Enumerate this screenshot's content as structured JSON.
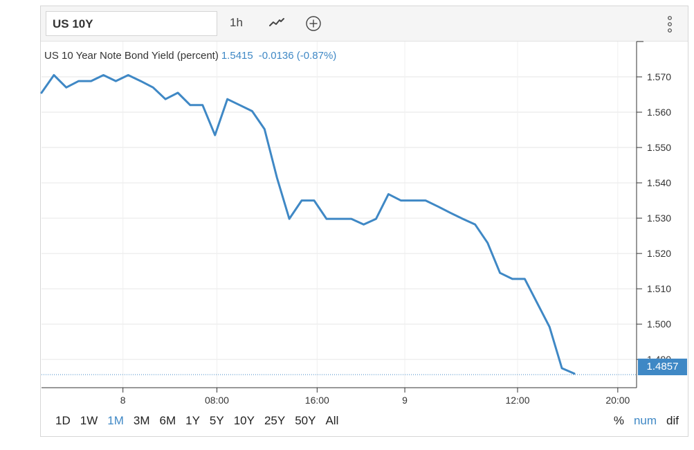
{
  "toolbar": {
    "symbol": "US 10Y",
    "interval": "1h",
    "icons": [
      "line-chart-icon",
      "add-circle-icon",
      "more-vertical-icon"
    ]
  },
  "legend": {
    "name": "US 10 Year Note Bond Yield (percent)",
    "value": "1.5415",
    "change": "-0.0136 (-0.87%)"
  },
  "last_price_label": "1.4857",
  "ranges": [
    "1D",
    "1W",
    "1M",
    "3M",
    "6M",
    "1Y",
    "5Y",
    "10Y",
    "25Y",
    "50Y",
    "All"
  ],
  "active_range": "1M",
  "modes": [
    "%",
    "num",
    "dif"
  ],
  "active_mode": "num",
  "colors": {
    "line": "#3f88c5",
    "accent": "#3f88c5",
    "grid": "#e6e6e6"
  },
  "chart_data": {
    "type": "line",
    "series": [
      {
        "values": [
          1.5655,
          1.5705,
          1.567,
          1.5688,
          1.5688,
          1.5705,
          1.5688,
          1.5705,
          1.5688,
          1.567,
          1.5637,
          1.5655,
          1.562,
          1.562,
          1.5535,
          1.5637,
          1.562,
          1.5603,
          1.5552,
          1.5415,
          1.5298,
          1.535,
          1.535,
          1.5298,
          1.5298,
          1.5298,
          1.5282,
          1.5298,
          1.5368,
          1.535,
          1.535,
          1.535,
          1.5333,
          1.5315,
          1.5298,
          1.5282,
          1.523,
          1.5145,
          1.5128,
          1.5128,
          1.506,
          1.4992,
          1.4875,
          1.486
        ]
      }
    ],
    "x_tick_labels": [
      "8",
      "08:00",
      "16:00",
      "9",
      "12:00",
      "20:00"
    ],
    "y_tick_labels": [
      "1.490",
      "1.500",
      "1.510",
      "1.520",
      "1.530",
      "1.540",
      "1.550",
      "1.560",
      "1.570"
    ],
    "ylim": [
      1.482,
      1.58
    ],
    "last_value": 1.4857,
    "grid": true,
    "y_axis_position": "right"
  }
}
